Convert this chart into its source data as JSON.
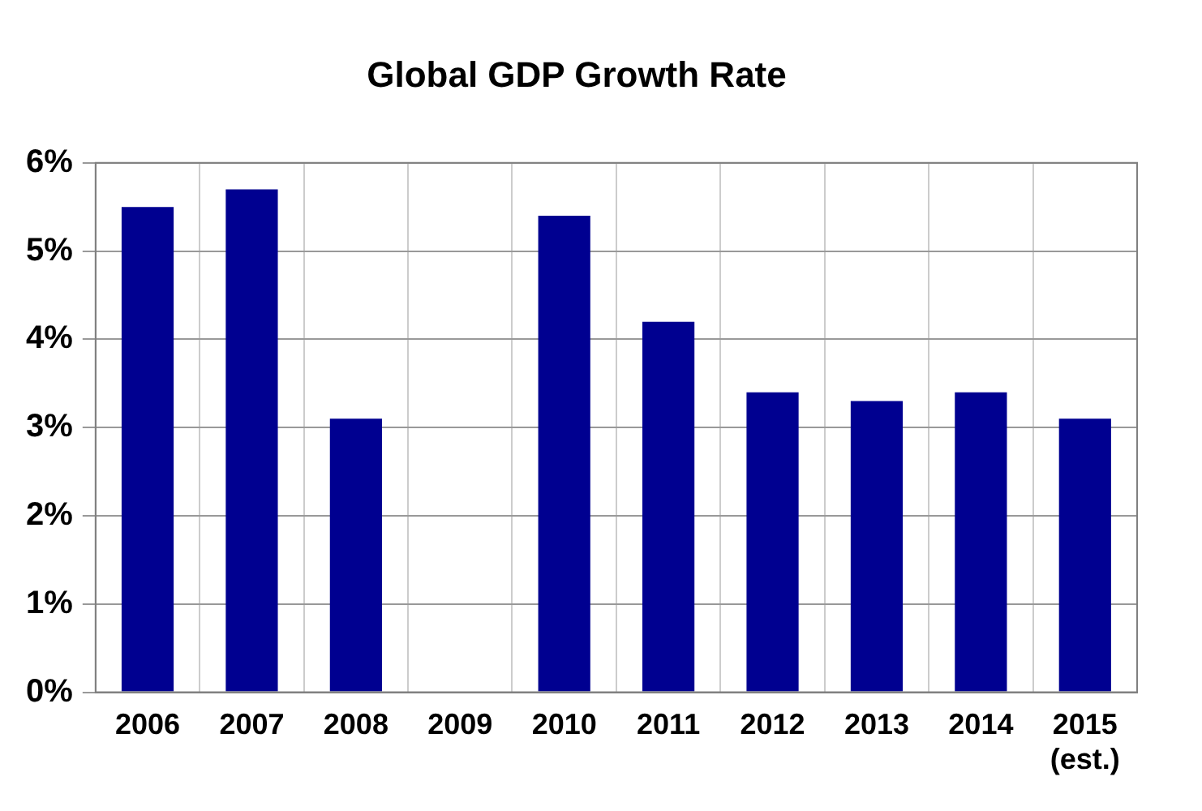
{
  "chart_data": {
    "type": "bar",
    "title": "Global GDP Growth Rate",
    "categories": [
      "2006",
      "2007",
      "2008",
      "2009",
      "2010",
      "2011",
      "2012",
      "2013",
      "2014",
      "2015\n(est.)"
    ],
    "values": [
      5.5,
      5.7,
      3.1,
      null,
      5.4,
      4.2,
      3.4,
      3.3,
      3.4,
      3.1
    ],
    "color": "#000090",
    "ylim": [
      0,
      6
    ],
    "yticks": [
      {
        "value": 0,
        "label": "0%"
      },
      {
        "value": 1,
        "label": "1%"
      },
      {
        "value": 2,
        "label": "2%"
      },
      {
        "value": 3,
        "label": "3%"
      },
      {
        "value": 4,
        "label": "4%"
      },
      {
        "value": 5,
        "label": "5%"
      },
      {
        "value": 6,
        "label": "6%"
      }
    ],
    "grid": true,
    "legend": false
  }
}
